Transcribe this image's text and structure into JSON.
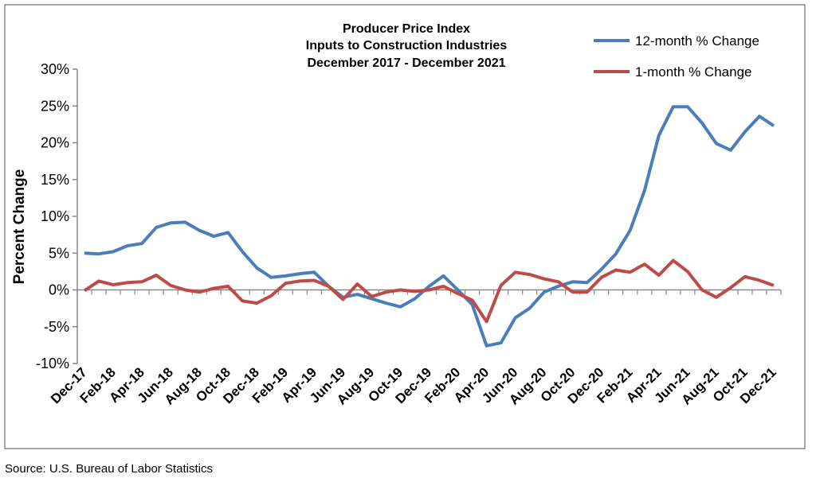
{
  "chart_data": {
    "type": "line",
    "title": [
      "Producer Price Index",
      "Inputs to Construction Industries",
      "December 2017 - December 2021"
    ],
    "y_label": "Percent Change",
    "source": "Source: U.S. Bureau of Labor Statistics",
    "categories": [
      "Dec-17",
      null,
      "Feb-18",
      null,
      "Apr-18",
      null,
      "Jun-18",
      null,
      "Aug-18",
      null,
      "Oct-18",
      null,
      "Dec-18",
      null,
      "Feb-19",
      null,
      "Apr-19",
      null,
      "Jun-19",
      null,
      "Aug-19",
      null,
      "Oct-19",
      null,
      "Dec-19",
      null,
      "Feb-20",
      null,
      "Apr-20",
      null,
      "Jun-20",
      null,
      "Aug-20",
      null,
      "Oct-20",
      null,
      "Dec-20",
      null,
      "Feb-21",
      null,
      "Apr-21",
      null,
      "Jun-21",
      null,
      "Aug-21",
      null,
      "Oct-21",
      null,
      "Dec-21"
    ],
    "series": [
      {
        "name": "12-month % Change",
        "color": "#4a7ebb",
        "values": [
          5.0,
          4.9,
          5.2,
          6.0,
          6.3,
          8.5,
          9.1,
          9.2,
          8.1,
          7.3,
          7.8,
          5.2,
          3.0,
          1.7,
          1.9,
          2.2,
          2.4,
          0.5,
          -1.0,
          -0.6,
          -1.2,
          -1.8,
          -2.3,
          -1.2,
          0.5,
          1.9,
          0.0,
          -2.0,
          -7.6,
          -7.2,
          -3.8,
          -2.5,
          -0.3,
          0.5,
          1.1,
          1.0,
          2.8,
          4.9,
          8.1,
          13.5,
          21.0,
          24.9,
          24.9,
          22.7,
          19.9,
          19.0,
          21.5,
          23.6,
          22.3
        ]
      },
      {
        "name": "1-month % Change",
        "color": "#be4b48",
        "values": [
          -0.1,
          1.2,
          0.7,
          1.0,
          1.1,
          2.0,
          0.6,
          0.0,
          -0.3,
          0.2,
          0.5,
          -1.5,
          -1.8,
          -0.8,
          0.9,
          1.2,
          1.3,
          0.5,
          -1.3,
          0.8,
          -0.9,
          -0.3,
          0.0,
          -0.2,
          0.0,
          0.5,
          -0.5,
          -1.4,
          -4.3,
          0.6,
          2.4,
          2.1,
          1.5,
          1.1,
          -0.3,
          -0.3,
          1.7,
          2.7,
          2.4,
          3.5,
          2.0,
          4.0,
          2.5,
          0.0,
          -1.0,
          0.3,
          1.8,
          1.3,
          0.6
        ]
      }
    ],
    "ylim": [
      -10,
      30
    ],
    "yticks": [
      {
        "value": -10,
        "label": "-10%"
      },
      {
        "value": -5,
        "label": "-5%"
      },
      {
        "value": 0,
        "label": "0%"
      },
      {
        "value": 5,
        "label": "5%"
      },
      {
        "value": 10,
        "label": "10%"
      },
      {
        "value": 15,
        "label": "15%"
      },
      {
        "value": 20,
        "label": "20%"
      },
      {
        "value": 25,
        "label": "25%"
      },
      {
        "value": 30,
        "label": "30%"
      }
    ],
    "grid": false,
    "legend": "top-right"
  }
}
